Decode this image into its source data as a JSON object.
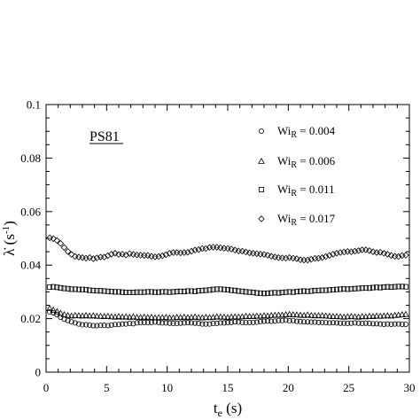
{
  "chart_data": {
    "type": "scatter",
    "panel_title": "PS81",
    "xlabel": {
      "main": "t",
      "sub": "e",
      "unit": " (s)"
    },
    "ylabel": {
      "main": "λ̇",
      "unit": " (s",
      "sup": "-1",
      "close": ")"
    },
    "xlim": [
      0,
      30
    ],
    "ylim": [
      0,
      0.1
    ],
    "xticks": [
      "0",
      "5",
      "10",
      "15",
      "20",
      "25",
      "30"
    ],
    "yticks": [
      "0",
      "0.02",
      "0.04",
      "0.06",
      "0.08",
      "0.1"
    ],
    "grid": false,
    "legend_position": "top-right",
    "series": [
      {
        "name": {
          "main": "Wi",
          "sub": "R",
          "rest": " = 0.004"
        },
        "marker": "circle",
        "x": [
          0.3,
          0.6,
          0.9,
          1.2,
          1.5,
          1.8,
          2.1,
          2.4,
          2.7,
          3.0,
          3.3,
          3.6,
          3.9,
          4.2,
          4.5,
          4.8,
          5.1,
          5.4,
          5.7,
          6.0,
          6.3,
          6.6,
          6.9,
          7.2,
          7.5,
          7.8,
          8.1,
          8.4,
          8.7,
          9.0,
          9.3,
          9.6,
          9.9,
          10.2,
          10.5,
          10.8,
          11.1,
          11.4,
          11.7,
          12.0,
          12.3,
          12.6,
          12.9,
          13.2,
          13.5,
          13.8,
          14.1,
          14.4,
          14.7,
          15.0,
          15.3,
          15.6,
          15.9,
          16.2,
          16.5,
          16.8,
          17.1,
          17.4,
          17.7,
          18.0,
          18.3,
          18.6,
          18.9,
          19.2,
          19.5,
          19.8,
          20.1,
          20.4,
          20.7,
          21.0,
          21.3,
          21.6,
          21.9,
          22.2,
          22.5,
          22.8,
          23.1,
          23.4,
          23.7,
          24.0,
          24.3,
          24.6,
          24.9,
          25.2,
          25.5,
          25.8,
          26.1,
          26.4,
          26.7,
          27.0,
          27.3,
          27.6,
          27.9,
          28.2,
          28.5,
          28.8,
          29.1,
          29.4,
          29.7
        ],
        "y": [
          0.0225,
          0.0222,
          0.0215,
          0.0205,
          0.0198,
          0.0193,
          0.0188,
          0.0184,
          0.018,
          0.0177,
          0.0177,
          0.0176,
          0.0174,
          0.0174,
          0.0175,
          0.0175,
          0.0174,
          0.0176,
          0.0178,
          0.0178,
          0.018,
          0.018,
          0.0182,
          0.0181,
          0.0184,
          0.0185,
          0.0186,
          0.0185,
          0.0186,
          0.0187,
          0.0186,
          0.0184,
          0.0184,
          0.0183,
          0.0182,
          0.0182,
          0.0183,
          0.0184,
          0.0185,
          0.0184,
          0.0183,
          0.0182,
          0.018,
          0.018,
          0.018,
          0.0182,
          0.0182,
          0.0184,
          0.0184,
          0.0185,
          0.0186,
          0.0188,
          0.0187,
          0.0186,
          0.0185,
          0.0186,
          0.0186,
          0.0187,
          0.0189,
          0.019,
          0.0191,
          0.019,
          0.0191,
          0.0193,
          0.0193,
          0.0194,
          0.0192,
          0.0193,
          0.019,
          0.0189,
          0.0188,
          0.0188,
          0.0187,
          0.0187,
          0.0186,
          0.0186,
          0.0185,
          0.0184,
          0.0185,
          0.0184,
          0.0183,
          0.0183,
          0.0182,
          0.0183,
          0.0184,
          0.0183,
          0.0182,
          0.0183,
          0.0182,
          0.0181,
          0.0181,
          0.018,
          0.0179,
          0.018,
          0.0179,
          0.018,
          0.018,
          0.0179,
          0.0179
        ]
      },
      {
        "name": {
          "main": "Wi",
          "sub": "R",
          "rest": " = 0.006"
        },
        "marker": "triangle",
        "x": [
          0.3,
          0.6,
          0.9,
          1.2,
          1.5,
          1.8,
          2.1,
          2.4,
          2.7,
          3.0,
          3.3,
          3.6,
          3.9,
          4.2,
          4.5,
          4.8,
          5.1,
          5.4,
          5.7,
          6.0,
          6.3,
          6.6,
          6.9,
          7.2,
          7.5,
          7.8,
          8.1,
          8.4,
          8.7,
          9.0,
          9.3,
          9.6,
          9.9,
          10.2,
          10.5,
          10.8,
          11.1,
          11.4,
          11.7,
          12.0,
          12.3,
          12.6,
          12.9,
          13.2,
          13.5,
          13.8,
          14.1,
          14.4,
          14.7,
          15.0,
          15.3,
          15.6,
          15.9,
          16.2,
          16.5,
          16.8,
          17.1,
          17.4,
          17.7,
          18.0,
          18.3,
          18.6,
          18.9,
          19.2,
          19.5,
          19.8,
          20.1,
          20.4,
          20.7,
          21.0,
          21.3,
          21.6,
          21.9,
          22.2,
          22.5,
          22.8,
          23.1,
          23.4,
          23.7,
          24.0,
          24.3,
          24.6,
          24.9,
          25.2,
          25.5,
          25.8,
          26.1,
          26.4,
          26.7,
          27.0,
          27.3,
          27.6,
          27.9,
          28.2,
          28.5,
          28.8,
          29.1,
          29.4,
          29.7
        ],
        "y": [
          0.0238,
          0.0232,
          0.0226,
          0.022,
          0.0215,
          0.0212,
          0.021,
          0.0212,
          0.0211,
          0.021,
          0.0212,
          0.021,
          0.0211,
          0.0209,
          0.0209,
          0.0208,
          0.0209,
          0.0207,
          0.0206,
          0.0208,
          0.0206,
          0.0207,
          0.0205,
          0.0207,
          0.0205,
          0.0204,
          0.0206,
          0.0204,
          0.0205,
          0.0203,
          0.0204,
          0.0204,
          0.0205,
          0.0203,
          0.0203,
          0.0205,
          0.0204,
          0.0206,
          0.0204,
          0.0205,
          0.0206,
          0.0204,
          0.0203,
          0.0205,
          0.0204,
          0.0205,
          0.0207,
          0.0206,
          0.0206,
          0.0204,
          0.0206,
          0.0207,
          0.0206,
          0.0207,
          0.0209,
          0.0208,
          0.0208,
          0.021,
          0.0209,
          0.0211,
          0.021,
          0.0212,
          0.0213,
          0.0213,
          0.0213,
          0.0215,
          0.0216,
          0.0215,
          0.0214,
          0.0213,
          0.0212,
          0.0214,
          0.0212,
          0.0211,
          0.0211,
          0.0211,
          0.021,
          0.0209,
          0.0208,
          0.0208,
          0.0207,
          0.0206,
          0.0207,
          0.0208,
          0.0207,
          0.0206,
          0.0208,
          0.0207,
          0.0209,
          0.0208,
          0.021,
          0.0209,
          0.021,
          0.0211,
          0.021,
          0.0212,
          0.0213,
          0.0215,
          0.0216
        ]
      },
      {
        "name": {
          "main": "Wi",
          "sub": "R",
          "rest": " = 0.011"
        },
        "marker": "square",
        "x": [
          0.3,
          0.6,
          0.9,
          1.2,
          1.5,
          1.8,
          2.1,
          2.4,
          2.7,
          3.0,
          3.3,
          3.6,
          3.9,
          4.2,
          4.5,
          4.8,
          5.1,
          5.4,
          5.7,
          6.0,
          6.3,
          6.6,
          6.9,
          7.2,
          7.5,
          7.8,
          8.1,
          8.4,
          8.7,
          9.0,
          9.3,
          9.6,
          9.9,
          10.2,
          10.5,
          10.8,
          11.1,
          11.4,
          11.7,
          12.0,
          12.3,
          12.6,
          12.9,
          13.2,
          13.5,
          13.8,
          14.1,
          14.4,
          14.7,
          15.0,
          15.3,
          15.6,
          15.9,
          16.2,
          16.5,
          16.8,
          17.1,
          17.4,
          17.7,
          18.0,
          18.3,
          18.6,
          18.9,
          19.2,
          19.5,
          19.8,
          20.1,
          20.4,
          20.7,
          21.0,
          21.3,
          21.6,
          21.9,
          22.2,
          22.5,
          22.8,
          23.1,
          23.4,
          23.7,
          24.0,
          24.3,
          24.6,
          24.9,
          25.2,
          25.5,
          25.8,
          26.1,
          26.4,
          26.7,
          27.0,
          27.3,
          27.6,
          27.9,
          28.2,
          28.5,
          28.8,
          29.1,
          29.4,
          29.7
        ],
        "y": [
          0.0318,
          0.0319,
          0.0317,
          0.0315,
          0.0313,
          0.0312,
          0.031,
          0.031,
          0.0309,
          0.0309,
          0.0308,
          0.0306,
          0.0305,
          0.0304,
          0.0304,
          0.0303,
          0.0302,
          0.0301,
          0.03,
          0.03,
          0.0299,
          0.0298,
          0.0298,
          0.0298,
          0.0299,
          0.0299,
          0.0299,
          0.03,
          0.03,
          0.0299,
          0.0299,
          0.03,
          0.03,
          0.0299,
          0.03,
          0.0301,
          0.0302,
          0.0301,
          0.0303,
          0.0303,
          0.0302,
          0.0304,
          0.0305,
          0.0306,
          0.0307,
          0.0309,
          0.031,
          0.031,
          0.0309,
          0.0308,
          0.0306,
          0.0305,
          0.0303,
          0.0302,
          0.03,
          0.0299,
          0.0298,
          0.0296,
          0.0295,
          0.0294,
          0.0295,
          0.0296,
          0.0297,
          0.0296,
          0.0298,
          0.0299,
          0.03,
          0.0299,
          0.0301,
          0.0302,
          0.0303,
          0.0302,
          0.0303,
          0.0305,
          0.0305,
          0.0306,
          0.0306,
          0.0307,
          0.0308,
          0.0309,
          0.031,
          0.0311,
          0.031,
          0.0311,
          0.0312,
          0.0313,
          0.0314,
          0.0315,
          0.0314,
          0.0316,
          0.0317,
          0.0316,
          0.0318,
          0.0319,
          0.0318,
          0.0319,
          0.032,
          0.032,
          0.0319
        ]
      },
      {
        "name": {
          "main": "Wi",
          "sub": "R",
          "rest": " = 0.017"
        },
        "marker": "diamond",
        "x": [
          0.3,
          0.6,
          0.9,
          1.2,
          1.5,
          1.8,
          2.1,
          2.4,
          2.7,
          3.0,
          3.3,
          3.6,
          3.9,
          4.2,
          4.5,
          4.8,
          5.1,
          5.4,
          5.7,
          6.0,
          6.3,
          6.6,
          6.9,
          7.2,
          7.5,
          7.8,
          8.1,
          8.4,
          8.7,
          9.0,
          9.3,
          9.6,
          9.9,
          10.2,
          10.5,
          10.8,
          11.1,
          11.4,
          11.7,
          12.0,
          12.3,
          12.6,
          12.9,
          13.2,
          13.5,
          13.8,
          14.1,
          14.4,
          14.7,
          15.0,
          15.3,
          15.6,
          15.9,
          16.2,
          16.5,
          16.8,
          17.1,
          17.4,
          17.7,
          18.0,
          18.3,
          18.6,
          18.9,
          19.2,
          19.5,
          19.8,
          20.1,
          20.4,
          20.7,
          21.0,
          21.3,
          21.6,
          21.9,
          22.2,
          22.5,
          22.8,
          23.1,
          23.4,
          23.7,
          24.0,
          24.3,
          24.6,
          24.9,
          25.2,
          25.5,
          25.8,
          26.1,
          26.4,
          26.7,
          27.0,
          27.3,
          27.6,
          27.9,
          28.2,
          28.5,
          28.8,
          29.1,
          29.4,
          29.7
        ],
        "y": [
          0.0502,
          0.0499,
          0.0492,
          0.0481,
          0.0466,
          0.0451,
          0.044,
          0.0432,
          0.043,
          0.0428,
          0.0426,
          0.0428,
          0.0424,
          0.0427,
          0.043,
          0.043,
          0.0435,
          0.0441,
          0.0444,
          0.044,
          0.0441,
          0.0438,
          0.0443,
          0.044,
          0.0438,
          0.0437,
          0.0436,
          0.0436,
          0.0433,
          0.0431,
          0.0432,
          0.0435,
          0.0439,
          0.0444,
          0.0447,
          0.0447,
          0.0446,
          0.0447,
          0.0448,
          0.0452,
          0.0456,
          0.0458,
          0.0462,
          0.0462,
          0.0466,
          0.0467,
          0.0467,
          0.0465,
          0.0463,
          0.0462,
          0.046,
          0.0456,
          0.0453,
          0.0452,
          0.0449,
          0.0446,
          0.0444,
          0.0443,
          0.0441,
          0.044,
          0.0437,
          0.0433,
          0.043,
          0.0428,
          0.0427,
          0.0426,
          0.0428,
          0.0426,
          0.0424,
          0.042,
          0.0419,
          0.0419,
          0.0422,
          0.0425,
          0.0426,
          0.0428,
          0.0432,
          0.0436,
          0.0441,
          0.0444,
          0.0447,
          0.0449,
          0.0451,
          0.045,
          0.0452,
          0.0454,
          0.0457,
          0.0457,
          0.0454,
          0.045,
          0.0447,
          0.0448,
          0.0444,
          0.0441,
          0.0436,
          0.0433,
          0.0432,
          0.0436,
          0.0437
        ]
      }
    ]
  }
}
